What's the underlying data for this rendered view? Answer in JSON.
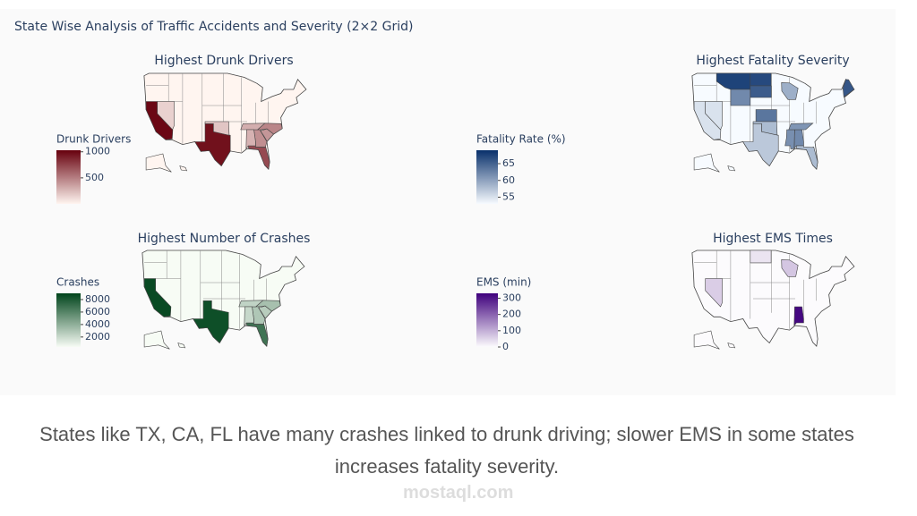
{
  "title": "State Wise Analysis of Traffic Accidents and Severity (2×2 Grid)",
  "chart_data": [
    {
      "type": "choropleth",
      "title": "Highest Drunk Drivers",
      "colorbar_title": "Drunk Drivers",
      "colorscale": [
        "#fff5f0",
        "#67000d"
      ],
      "zlim": [
        0,
        1030
      ],
      "zticks": [
        500,
        1000
      ],
      "locations": [
        "CA",
        "TX",
        "FL",
        "GA",
        "NC",
        "SC",
        "TN",
        "AL",
        "OK",
        "NV"
      ],
      "values": [
        1000,
        960,
        720,
        430,
        470,
        400,
        300,
        280,
        200,
        150
      ]
    },
    {
      "type": "choropleth",
      "title": "Highest Fatality Severity",
      "colorbar_title": "Fatality Rate (%)",
      "colorscale": [
        "#f7fbff",
        "#08306b"
      ],
      "zlim": [
        53,
        69
      ],
      "zticks": [
        55,
        60,
        65
      ],
      "locations": [
        "MT",
        "ND",
        "SD",
        "ME",
        "KS",
        "WY",
        "AL",
        "MS",
        "TN",
        "OK",
        "CA",
        "TX",
        "FL",
        "NV",
        "WI"
      ],
      "values": [
        67.5,
        67,
        65.5,
        66,
        63.5,
        62,
        62,
        61.5,
        61,
        58,
        55,
        57,
        58,
        55,
        59
      ]
    },
    {
      "type": "choropleth",
      "title": "Highest Number of Crashes",
      "colorbar_title": "Crashes",
      "colorscale": [
        "#f7fcf5",
        "#00441b"
      ],
      "zlim": [
        400,
        9000
      ],
      "zticks": [
        2000,
        4000,
        6000,
        8000
      ],
      "locations": [
        "CA",
        "TX",
        "FL",
        "NC",
        "GA",
        "SC",
        "TN",
        "AL"
      ],
      "values": [
        8700,
        8500,
        6800,
        3200,
        2900,
        2600,
        2300,
        2100
      ]
    },
    {
      "type": "choropleth",
      "title": "Highest EMS Times",
      "colorbar_title": "EMS (min)",
      "colorscale": [
        "#fcfbfd",
        "#3f007d"
      ],
      "zlim": [
        0,
        330
      ],
      "zticks": [
        0,
        100,
        200,
        300
      ],
      "locations": [
        "AL",
        "NV",
        "WI",
        "ND"
      ],
      "values": [
        320,
        60,
        70,
        30
      ]
    }
  ],
  "caption": "States like TX, CA, FL have many crashes linked to drunk driving; slower EMS in some states increases fatality severity.",
  "watermark": "mostaql.com"
}
